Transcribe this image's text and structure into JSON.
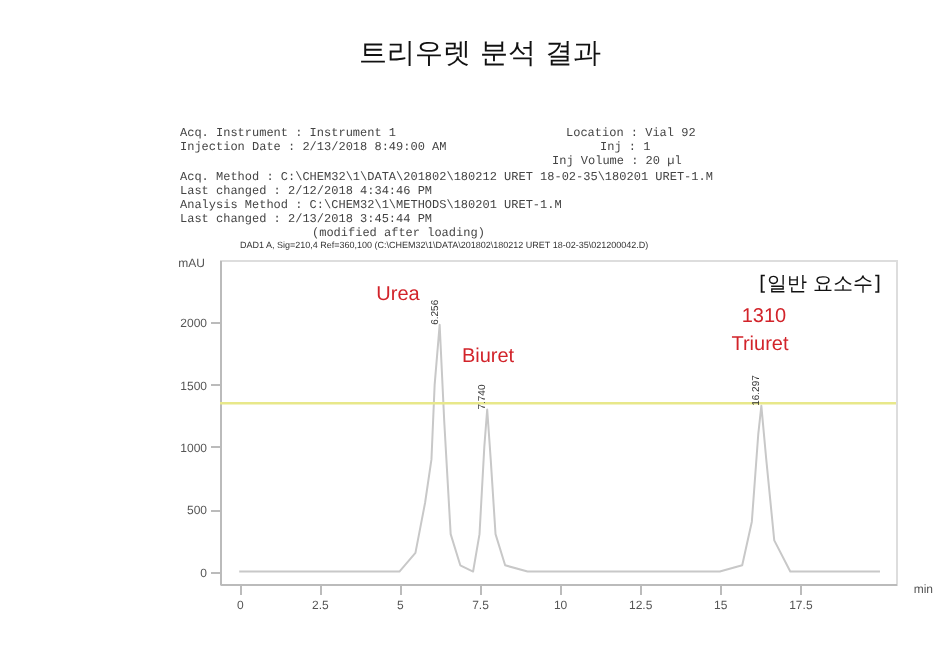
{
  "chart_data": {
    "type": "line",
    "title": "트리우렛 분석 결과",
    "subtitle": "DAD1 A, Sig=210,4 Ref=360,100 (C:\\CHEM32\\1\\DATA\\201802\\180212 URET 18-02-35\\021200042.D)",
    "xlabel": "min",
    "ylabel": "mAU",
    "x": [
      0,
      4,
      5,
      5.5,
      5.8,
      6.0,
      6.1,
      6.256,
      6.4,
      6.6,
      6.9,
      7.3,
      7.5,
      7.65,
      7.74,
      7.85,
      8.0,
      8.3,
      9,
      12,
      15,
      15.7,
      16.0,
      16.2,
      16.297,
      16.45,
      16.7,
      17.2,
      18,
      20
    ],
    "series": [
      {
        "color": "#c8c8c8",
        "values": [
          0,
          0,
          0,
          150,
          550,
          900,
          1500,
          1980,
          1200,
          300,
          50,
          0,
          300,
          1000,
          1300,
          900,
          300,
          50,
          0,
          0,
          0,
          50,
          400,
          1100,
          1330,
          900,
          250,
          0,
          0,
          0
        ]
      }
    ],
    "xlim": [
      -0.6,
      20.5
    ],
    "ylim": [
      -100,
      2500
    ],
    "xticks": [
      0,
      2.5,
      5,
      7.5,
      10,
      12.5,
      15,
      17.5
    ],
    "yticks": [
      0,
      500,
      1000,
      1500,
      2000
    ],
    "ref_lines": [
      {
        "axis": "y",
        "value": 1350,
        "color": "#e8e88a"
      }
    ],
    "grid": false,
    "marker": "none",
    "line_style": "solid",
    "annotations": [
      "Acq. Instrument : Instrument 1",
      "Location : Vial 92",
      "Injection Date : 2/13/2018 8:49:00 AM",
      "Inj : 1",
      "Inj Volume : 20 µl",
      "Acq. Method : C:\\CHEM32\\1\\DATA\\201802\\180212 URET 18-02-35\\180201 URET-1.M",
      "Last changed : 2/12/2018 4:34:46 PM",
      "Analysis Method : C:\\CHEM32\\1\\METHODS\\180201 URET-1.M",
      "Last changed : 2/13/2018 3:45:44 PM",
      "(modified after loading)",
      {
        "text": "6.256",
        "x": 6.256,
        "y": 1980
      },
      {
        "text": "7.740",
        "x": 7.74,
        "y": 1300
      },
      {
        "text": "16.297",
        "x": 16.297,
        "y": 1330
      },
      "Urea",
      "Biuret",
      "1310",
      "Triuret",
      "[일반 요소수]"
    ]
  }
}
